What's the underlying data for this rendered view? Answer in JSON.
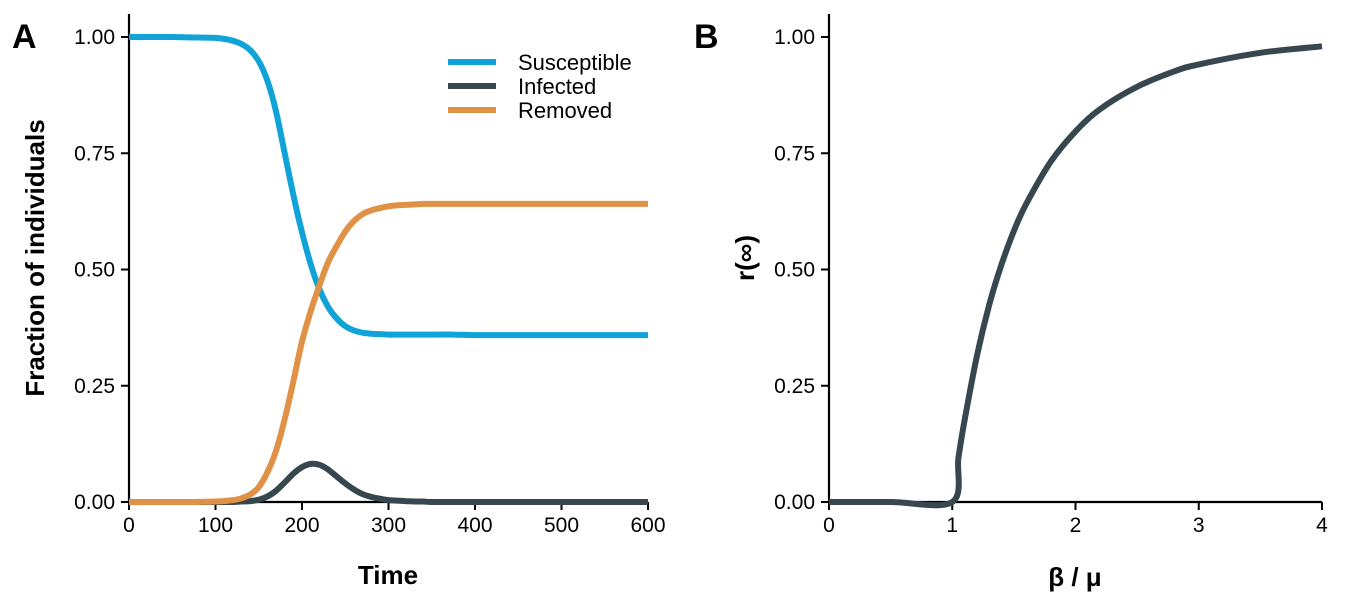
{
  "chart_data": [
    {
      "panel": "A",
      "type": "line",
      "xlabel": "Time",
      "ylabel": "Fraction of individuals",
      "xlim": [
        0,
        600
      ],
      "ylim": [
        0,
        1.05
      ],
      "xticks": [
        0,
        100,
        200,
        300,
        400,
        500,
        600
      ],
      "xtick_labels": [
        "0",
        "100",
        "200",
        "300",
        "400",
        "500",
        "600"
      ],
      "yticks": [
        0,
        0.25,
        0.5,
        0.75,
        1.0
      ],
      "ytick_labels": [
        "0.00",
        "0.25",
        "0.50",
        "0.75",
        "1.00"
      ],
      "grid": false,
      "legend": "top-right",
      "x": [
        0,
        25,
        50,
        75,
        100,
        110,
        120,
        130,
        140,
        150,
        160,
        170,
        180,
        190,
        200,
        210,
        220,
        230,
        240,
        250,
        260,
        270,
        280,
        290,
        300,
        310,
        320,
        330,
        340,
        350,
        375,
        400,
        450,
        500,
        550,
        600
      ],
      "series": [
        {
          "name": "Susceptible",
          "color": "#0fa3d8",
          "values": [
            1.0,
            1.0,
            1.0,
            0.999,
            0.998,
            0.996,
            0.992,
            0.985,
            0.972,
            0.948,
            0.906,
            0.84,
            0.75,
            0.66,
            0.58,
            0.512,
            0.458,
            0.42,
            0.395,
            0.378,
            0.369,
            0.364,
            0.362,
            0.361,
            0.36,
            0.36,
            0.36,
            0.36,
            0.36,
            0.36,
            0.36,
            0.359,
            0.359,
            0.359,
            0.359,
            0.359
          ]
        },
        {
          "name": "Infected",
          "color": "#37474f",
          "values": [
            0.0,
            0.0,
            0.0,
            0.0,
            0.0,
            0.0,
            0.0,
            0.001,
            0.002,
            0.005,
            0.012,
            0.024,
            0.042,
            0.061,
            0.075,
            0.082,
            0.08,
            0.07,
            0.055,
            0.04,
            0.027,
            0.017,
            0.011,
            0.007,
            0.004,
            0.003,
            0.002,
            0.001,
            0.001,
            0.0,
            0.0,
            0.0,
            0.0,
            0.0,
            0.0,
            0.0
          ]
        },
        {
          "name": "Removed",
          "color": "#e09145",
          "values": [
            0.0,
            0.0,
            0.0,
            0.0,
            0.001,
            0.002,
            0.004,
            0.008,
            0.016,
            0.032,
            0.064,
            0.11,
            0.178,
            0.26,
            0.345,
            0.41,
            0.465,
            0.515,
            0.55,
            0.582,
            0.604,
            0.619,
            0.627,
            0.632,
            0.636,
            0.638,
            0.639,
            0.64,
            0.641,
            0.641,
            0.641,
            0.641,
            0.641,
            0.641,
            0.641,
            0.641
          ]
        }
      ]
    },
    {
      "panel": "B",
      "type": "line",
      "xlabel": "β / μ",
      "ylabel": "r(∞)",
      "xlim": [
        0,
        4
      ],
      "ylim": [
        0,
        1.05
      ],
      "xticks": [
        0,
        1,
        2,
        3,
        4
      ],
      "xtick_labels": [
        "0",
        "1",
        "2",
        "3",
        "4"
      ],
      "yticks": [
        0,
        0.25,
        0.5,
        0.75,
        1.0
      ],
      "ytick_labels": [
        "0.00",
        "0.25",
        "0.50",
        "0.75",
        "1.00"
      ],
      "grid": false,
      "x": [
        0,
        0.5,
        1.0,
        1.05,
        1.1,
        1.2,
        1.3,
        1.4,
        1.5,
        1.6,
        1.8,
        2.0,
        2.2,
        2.5,
        2.8,
        3.0,
        3.5,
        4.0
      ],
      "series": [
        {
          "color": "#37474f",
          "values": [
            0.0,
            0.0,
            0.0,
            0.095,
            0.176,
            0.314,
            0.424,
            0.511,
            0.583,
            0.641,
            0.732,
            0.797,
            0.845,
            0.893,
            0.926,
            0.941,
            0.966,
            0.98
          ]
        }
      ]
    }
  ]
}
